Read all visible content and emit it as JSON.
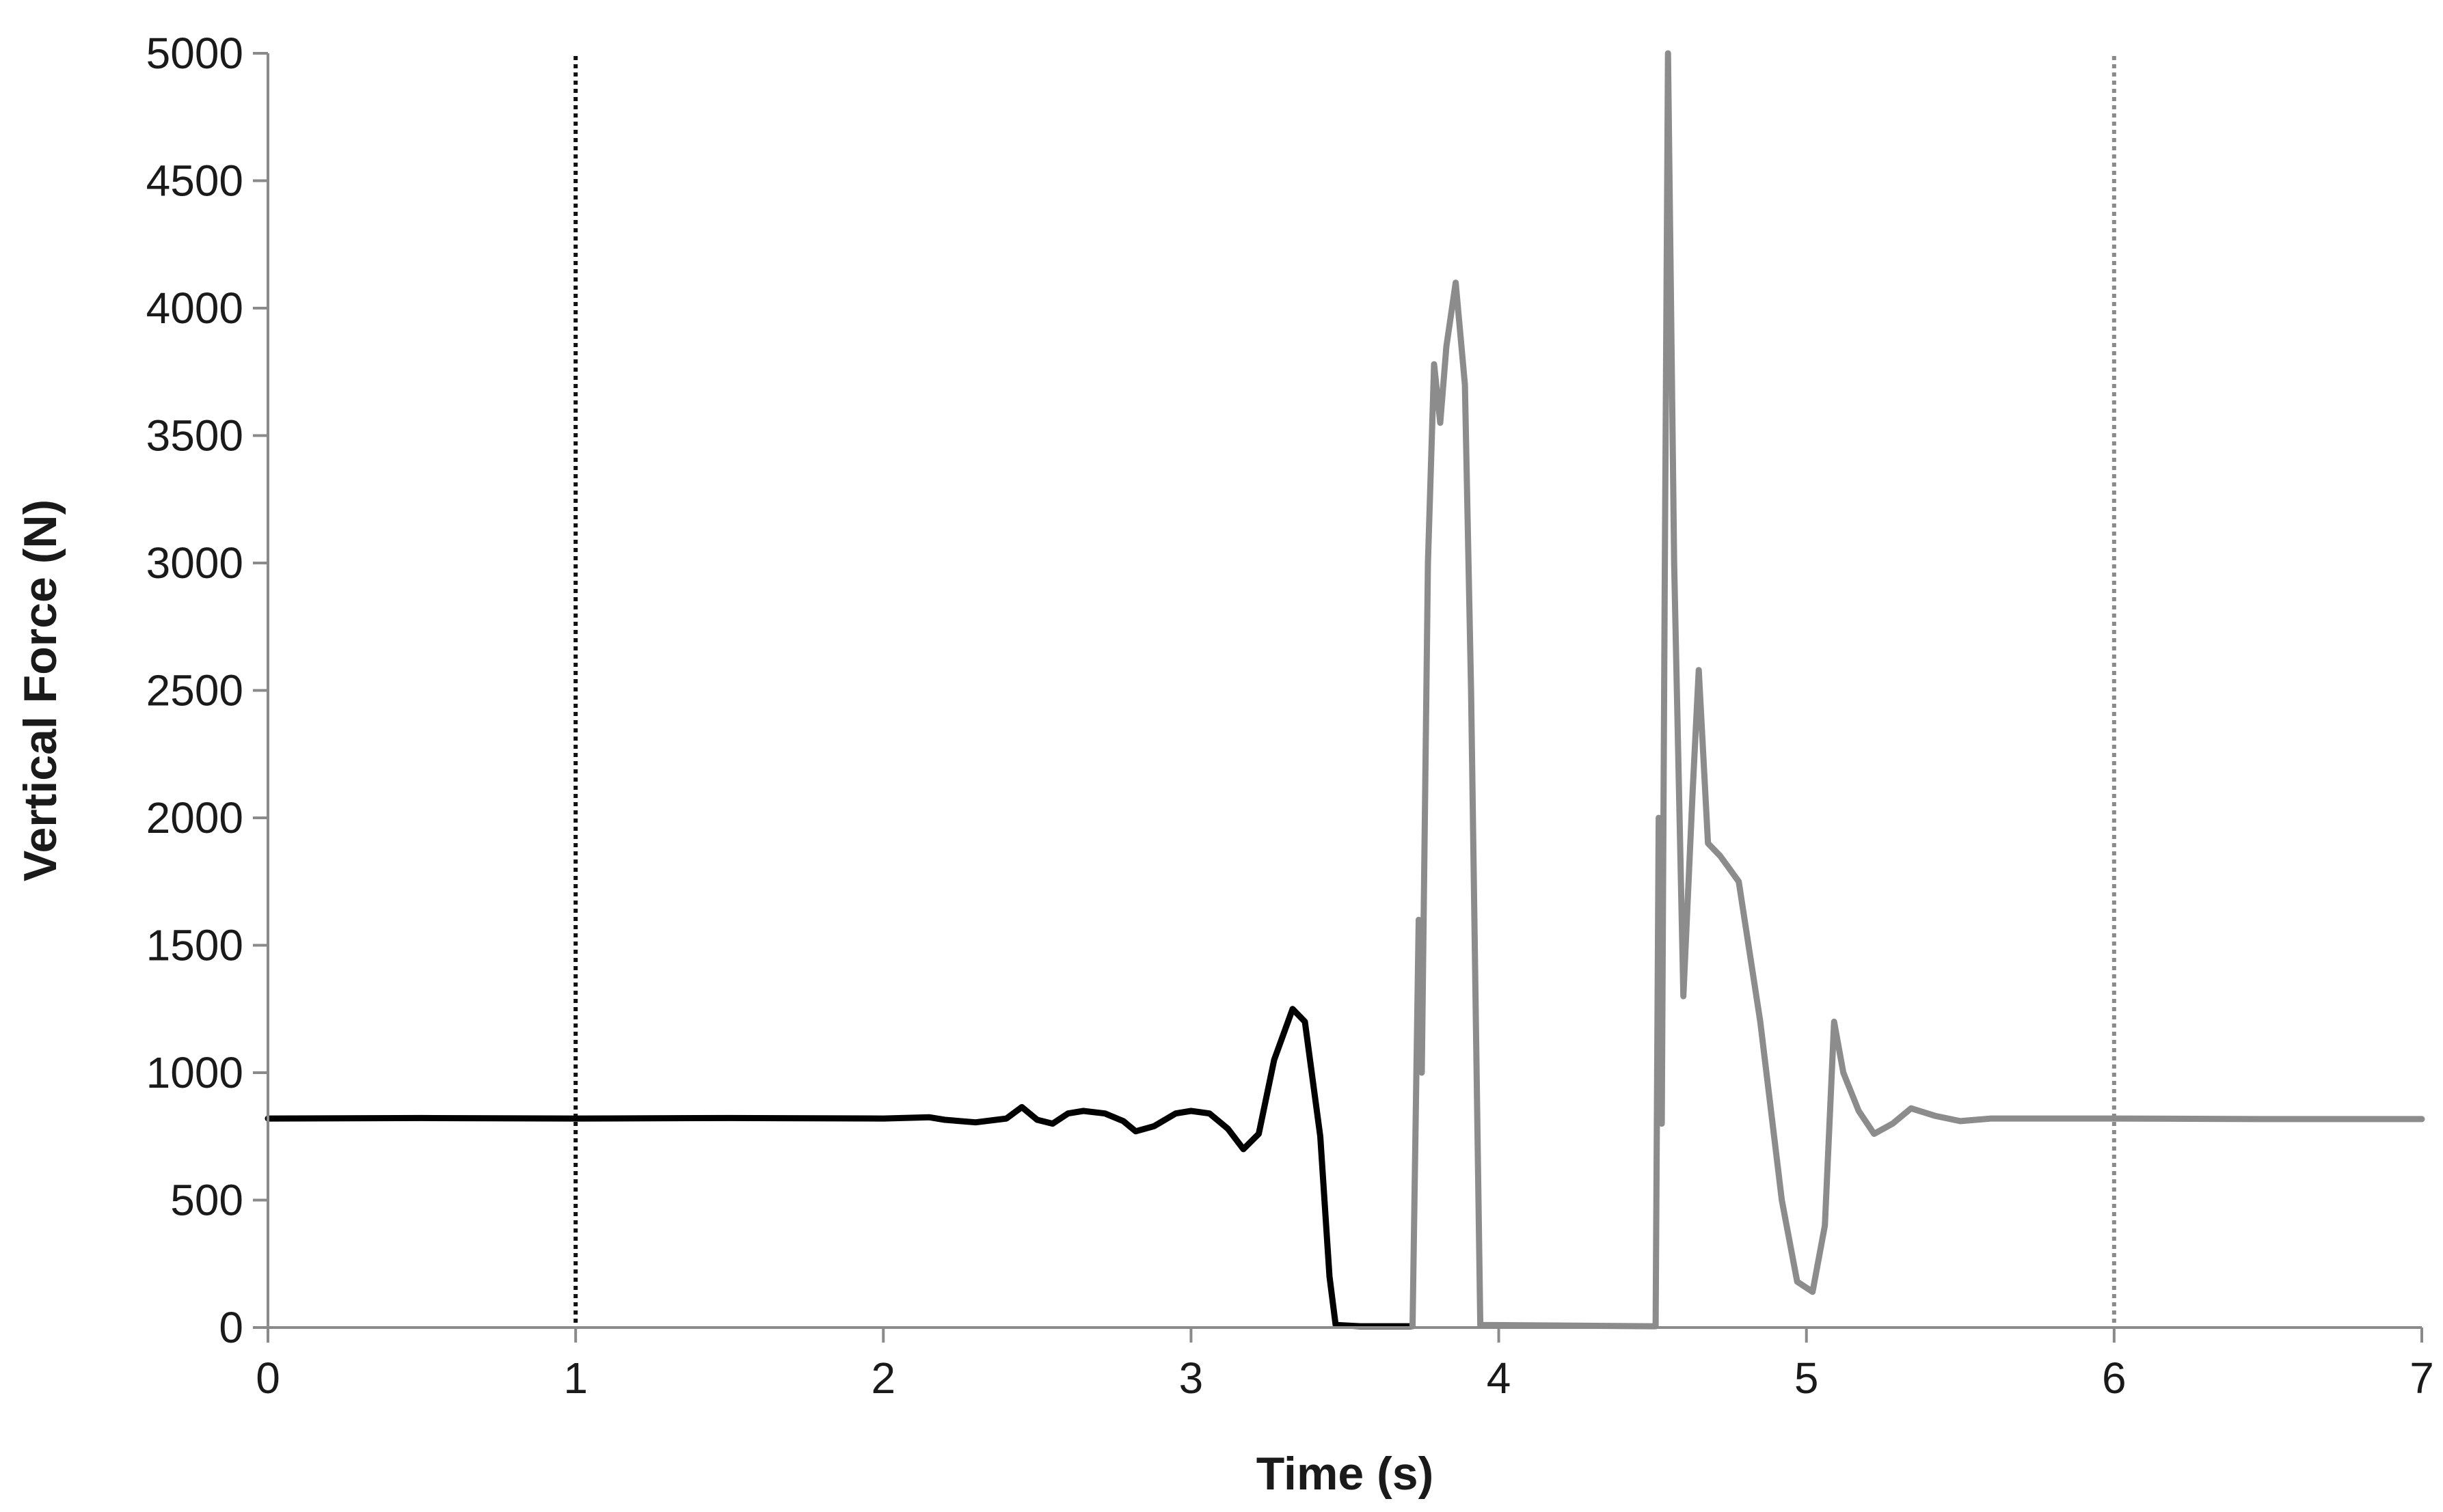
{
  "chart_data": {
    "type": "line",
    "title": "",
    "xlabel": "Time (s)",
    "ylabel": "Vertical Force (N)",
    "xlim": [
      0,
      7
    ],
    "ylim": [
      0,
      5000
    ],
    "x_ticks": [
      0,
      1,
      2,
      3,
      4,
      5,
      6,
      7
    ],
    "y_ticks": [
      0,
      500,
      1000,
      1500,
      2000,
      2500,
      3000,
      3500,
      4000,
      4500,
      5000
    ],
    "grid": false,
    "legend": "none",
    "reference_lines": [
      {
        "x": 1,
        "style": "dotted",
        "color": "#111111"
      },
      {
        "x": 6,
        "style": "dotted",
        "color": "#8a8a8a"
      }
    ],
    "series": [
      {
        "color": "#000000",
        "points": [
          [
            0.0,
            820
          ],
          [
            0.5,
            822
          ],
          [
            1.0,
            820
          ],
          [
            1.5,
            822
          ],
          [
            2.0,
            820
          ],
          [
            2.15,
            825
          ],
          [
            2.2,
            815
          ],
          [
            2.3,
            805
          ],
          [
            2.4,
            820
          ],
          [
            2.45,
            865
          ],
          [
            2.5,
            815
          ],
          [
            2.55,
            800
          ],
          [
            2.6,
            840
          ],
          [
            2.65,
            850
          ],
          [
            2.72,
            840
          ],
          [
            2.78,
            810
          ],
          [
            2.82,
            770
          ],
          [
            2.88,
            790
          ],
          [
            2.95,
            840
          ],
          [
            3.0,
            850
          ],
          [
            3.06,
            840
          ],
          [
            3.12,
            780
          ],
          [
            3.17,
            700
          ],
          [
            3.22,
            760
          ],
          [
            3.27,
            1050
          ],
          [
            3.33,
            1250
          ],
          [
            3.37,
            1200
          ],
          [
            3.42,
            750
          ],
          [
            3.45,
            200
          ],
          [
            3.47,
            10
          ],
          [
            3.55,
            5
          ],
          [
            3.72,
            5
          ]
        ]
      },
      {
        "color": "#8c8c8c",
        "points": [
          [
            3.72,
            5
          ],
          [
            3.74,
            1600
          ],
          [
            3.75,
            1000
          ],
          [
            3.77,
            3000
          ],
          [
            3.79,
            3780
          ],
          [
            3.81,
            3550
          ],
          [
            3.83,
            3850
          ],
          [
            3.86,
            4100
          ],
          [
            3.89,
            3700
          ],
          [
            3.91,
            2500
          ],
          [
            3.94,
            10
          ],
          [
            4.5,
            5
          ],
          [
            4.51,
            5
          ],
          [
            4.52,
            2000
          ],
          [
            4.53,
            800
          ],
          [
            4.54,
            3000
          ],
          [
            4.55,
            5000
          ],
          [
            4.57,
            3000
          ],
          [
            4.6,
            1300
          ],
          [
            4.63,
            2100
          ],
          [
            4.65,
            2580
          ],
          [
            4.68,
            1900
          ],
          [
            4.72,
            1850
          ],
          [
            4.78,
            1750
          ],
          [
            4.85,
            1200
          ],
          [
            4.92,
            500
          ],
          [
            4.97,
            180
          ],
          [
            5.02,
            140
          ],
          [
            5.06,
            400
          ],
          [
            5.09,
            1200
          ],
          [
            5.12,
            1000
          ],
          [
            5.17,
            850
          ],
          [
            5.22,
            760
          ],
          [
            5.28,
            800
          ],
          [
            5.34,
            860
          ],
          [
            5.42,
            830
          ],
          [
            5.5,
            810
          ],
          [
            5.6,
            820
          ],
          [
            6.0,
            820
          ],
          [
            6.5,
            818
          ],
          [
            7.0,
            818
          ]
        ]
      }
    ]
  }
}
